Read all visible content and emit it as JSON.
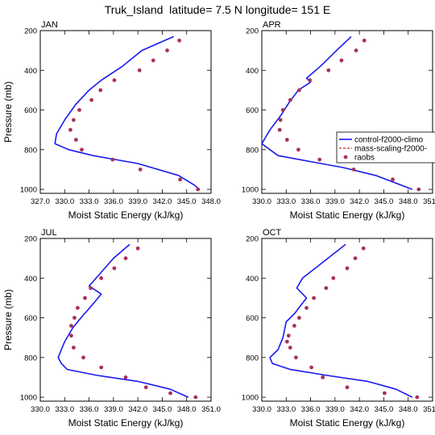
{
  "title": "Truk_Island  latitude= 7.5 N longitude= 151 E",
  "legend": {
    "entries": [
      "control-f2000-climo",
      "mass-scaling-f2000-",
      "raobs"
    ]
  },
  "colors": {
    "control": "#1a1aee",
    "mass_scaling": "#dd2222",
    "raobs": "#a8325a"
  },
  "chart_data": [
    {
      "type": "line",
      "title": "JAN",
      "xlabel": "Moist Static Energy (kJ/kg)",
      "ylabel": "Pressure (mb)",
      "xlim": [
        327,
        348
      ],
      "ylim": [
        200,
        1020
      ],
      "y_inverted": true,
      "xticks": [
        "327.0",
        "330.0",
        "333.0",
        "336.0",
        "339.0",
        "342.0",
        "345.0",
        "348.0"
      ],
      "yticks": [
        "200",
        "400",
        "600",
        "800",
        "1000"
      ],
      "series": [
        {
          "name": "control-f2000-climo",
          "style": "line",
          "x": [
            343.4,
            339.5,
            337.1,
            334.5,
            333.0,
            331.4,
            330.0,
            329.0,
            328.8,
            330.5,
            333.5,
            339.0,
            344.0,
            346.0,
            346.5
          ],
          "y": [
            230,
            300,
            380,
            450,
            500,
            570,
            650,
            720,
            770,
            800,
            830,
            870,
            930,
            980,
            1000
          ]
        },
        {
          "name": "raobs",
          "style": "markers",
          "x": [
            344.1,
            342.6,
            340.9,
            339.2,
            336.1,
            334.4,
            333.3,
            331.8,
            331.1,
            330.7,
            331.4,
            332.1,
            335.9,
            339.3,
            344.2,
            346.4
          ],
          "y": [
            250,
            300,
            350,
            400,
            450,
            500,
            550,
            600,
            650,
            700,
            750,
            800,
            850,
            900,
            950,
            1000
          ]
        }
      ]
    },
    {
      "type": "line",
      "title": "APR",
      "xlabel": "Moist Static Energy (kJ/kg)",
      "ylabel": "Pressure (mb)",
      "xlim": [
        330,
        351
      ],
      "ylim": [
        200,
        1020
      ],
      "y_inverted": true,
      "xticks": [
        "330.0",
        "333.0",
        "336.0",
        "339.0",
        "342.0",
        "345.0",
        "348.0",
        "351.0"
      ],
      "yticks": [
        "200",
        "400",
        "600",
        "800",
        "1000"
      ],
      "series": [
        {
          "name": "control-f2000-climo",
          "style": "line",
          "x": [
            341.0,
            339.2,
            337.2,
            335.5,
            336.0,
            334.5,
            333.4,
            332.3,
            331.0,
            330.0,
            331.0,
            332.0,
            336.0,
            340.0,
            344.0,
            348.5
          ],
          "y": [
            230,
            300,
            380,
            440,
            460,
            500,
            560,
            630,
            700,
            770,
            800,
            830,
            860,
            890,
            930,
            1000
          ]
        },
        {
          "name": "raobs",
          "style": "markers",
          "x": [
            342.6,
            341.6,
            339.8,
            338.2,
            335.9,
            334.6,
            333.5,
            332.6,
            332.3,
            332.2,
            333.1,
            334.5,
            337.1,
            341.3,
            346.1,
            349.3
          ],
          "y": [
            250,
            300,
            350,
            400,
            450,
            500,
            550,
            600,
            650,
            700,
            750,
            800,
            850,
            900,
            950,
            1000
          ]
        }
      ]
    },
    {
      "type": "line",
      "title": "JUL",
      "xlabel": "Moist Static Energy (kJ/kg)",
      "ylabel": "Pressure (mb)",
      "xlim": [
        330,
        351
      ],
      "ylim": [
        200,
        1020
      ],
      "y_inverted": true,
      "xticks": [
        "330.0",
        "333.0",
        "336.0",
        "339.0",
        "342.0",
        "345.0",
        "348.0",
        "351.0"
      ],
      "yticks": [
        "200",
        "400",
        "600",
        "800",
        "1000"
      ],
      "series": [
        {
          "name": "control-f2000-climo",
          "style": "line",
          "x": [
            341.0,
            339.0,
            337.5,
            336.0,
            337.5,
            336.5,
            335.0,
            334.0,
            333.0,
            332.4,
            332.2,
            332.6,
            333.3,
            337.0,
            342.0,
            346.0,
            348.2
          ],
          "y": [
            230,
            300,
            370,
            440,
            480,
            530,
            600,
            650,
            720,
            780,
            800,
            830,
            860,
            890,
            920,
            960,
            1000
          ]
        },
        {
          "name": "raobs",
          "style": "markers",
          "x": [
            342.0,
            340.5,
            339.1,
            337.5,
            336.2,
            335.5,
            334.6,
            334.2,
            333.8,
            333.8,
            334.1,
            335.3,
            337.5,
            340.5,
            343.0,
            346.0,
            349.1
          ],
          "y": [
            250,
            300,
            350,
            400,
            450,
            500,
            550,
            600,
            640,
            690,
            750,
            800,
            850,
            900,
            950,
            980,
            1000
          ]
        }
      ]
    },
    {
      "type": "line",
      "title": "OCT",
      "xlabel": "Moist Static Energy (kJ/kg)",
      "ylabel": "Pressure (mb)",
      "xlim": [
        330,
        351
      ],
      "ylim": [
        200,
        1020
      ],
      "y_inverted": true,
      "xticks": [
        "330.0",
        "333.0",
        "336.0",
        "339.0",
        "342.0",
        "345.0",
        "348.0",
        "351.0"
      ],
      "yticks": [
        "200",
        "400",
        "600",
        "800",
        "1000"
      ],
      "series": [
        {
          "name": "control-f2000-climo",
          "style": "line",
          "x": [
            340.3,
            337.5,
            335.0,
            334.3,
            335.5,
            334.0,
            333.0,
            332.6,
            332.0,
            331.0,
            331.3,
            333.5,
            338.0,
            343.0,
            346.5,
            348.5
          ],
          "y": [
            230,
            320,
            400,
            450,
            500,
            580,
            620,
            700,
            760,
            800,
            830,
            860,
            890,
            920,
            960,
            1000
          ]
        },
        {
          "name": "raobs",
          "style": "markers",
          "x": [
            342.5,
            341.5,
            340.5,
            338.8,
            337.9,
            336.4,
            335.5,
            334.6,
            334.0,
            333.3,
            333.1,
            333.5,
            334.2,
            336.1,
            337.5,
            340.5,
            345.1,
            349.1
          ],
          "y": [
            250,
            300,
            350,
            400,
            450,
            500,
            550,
            600,
            640,
            690,
            720,
            750,
            800,
            850,
            900,
            950,
            980,
            1000
          ]
        }
      ]
    }
  ]
}
